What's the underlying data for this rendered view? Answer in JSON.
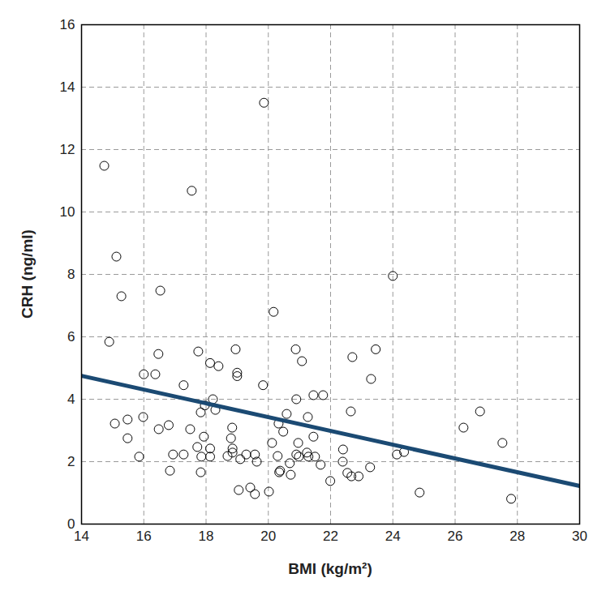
{
  "chart_data": {
    "type": "scatter",
    "xlabel": "BMI (kg/m²)",
    "ylabel": "CRH (ng/ml)",
    "xlim": [
      14,
      30
    ],
    "ylim": [
      0,
      16
    ],
    "xticks": [
      14,
      16,
      18,
      20,
      22,
      24,
      26,
      28,
      30
    ],
    "yticks": [
      0,
      2,
      4,
      6,
      8,
      10,
      12,
      14,
      16
    ],
    "grid": true,
    "series": [
      {
        "type": "scatter",
        "marker": "circle",
        "color": "#000000",
        "x": [
          14.73,
          19.86,
          17.54,
          15.12,
          24.0,
          15.28,
          16.53,
          20.17,
          14.89,
          17.75,
          18.95,
          20.88,
          23.45,
          16.47,
          22.7,
          21.08,
          18.13,
          18.4,
          19.0,
          19.0,
          16.0,
          16.37,
          23.3,
          17.28,
          19.83,
          21.76,
          21.45,
          20.9,
          18.22,
          18.3,
          17.96,
          17.83,
          20.59,
          15.98,
          21.27,
          22.65,
          26.8,
          26.27,
          15.48,
          15.07,
          20.33,
          18.84,
          16.8,
          16.48,
          17.49,
          20.48,
          17.93,
          21.45,
          18.8,
          15.48,
          20.12,
          20.96,
          27.52,
          18.85,
          17.72,
          18.13,
          22.4,
          18.85,
          21.24,
          19.29,
          19.57,
          20.9,
          24.13,
          24.36,
          16.94,
          17.28,
          15.85,
          17.85,
          18.13,
          18.69,
          20.3,
          20.98,
          21.29,
          21.5,
          19.1,
          22.39,
          19.63,
          21.68,
          20.69,
          23.27,
          16.84,
          17.83,
          20.38,
          20.35,
          20.72,
          22.54,
          22.67,
          22.9,
          21.99,
          19.42,
          19.05,
          19.57,
          20.02,
          24.86,
          27.8
        ],
        "values": [
          11.48,
          13.5,
          10.68,
          8.57,
          7.95,
          7.3,
          7.48,
          6.8,
          5.84,
          5.53,
          5.6,
          5.6,
          5.6,
          5.45,
          5.35,
          5.22,
          5.16,
          5.06,
          4.85,
          4.74,
          4.8,
          4.8,
          4.65,
          4.45,
          4.45,
          4.13,
          4.13,
          4.0,
          4.0,
          3.66,
          3.8,
          3.58,
          3.53,
          3.43,
          3.43,
          3.61,
          3.61,
          3.09,
          3.35,
          3.22,
          3.22,
          3.09,
          3.17,
          3.04,
          3.04,
          2.96,
          2.8,
          2.8,
          2.75,
          2.75,
          2.6,
          2.6,
          2.6,
          2.42,
          2.47,
          2.42,
          2.39,
          2.29,
          2.29,
          2.23,
          2.23,
          2.23,
          2.23,
          2.31,
          2.23,
          2.23,
          2.16,
          2.16,
          2.16,
          2.18,
          2.18,
          2.16,
          2.16,
          2.16,
          2.08,
          2.0,
          2.0,
          1.9,
          1.95,
          1.82,
          1.71,
          1.66,
          1.71,
          1.66,
          1.58,
          1.64,
          1.53,
          1.53,
          1.38,
          1.17,
          1.09,
          0.96,
          1.04,
          1.01,
          0.81
        ]
      },
      {
        "type": "line",
        "line_style": "solid",
        "color": "#1b4a73",
        "x": [
          14,
          30
        ],
        "values": [
          4.75,
          1.22
        ]
      }
    ]
  }
}
